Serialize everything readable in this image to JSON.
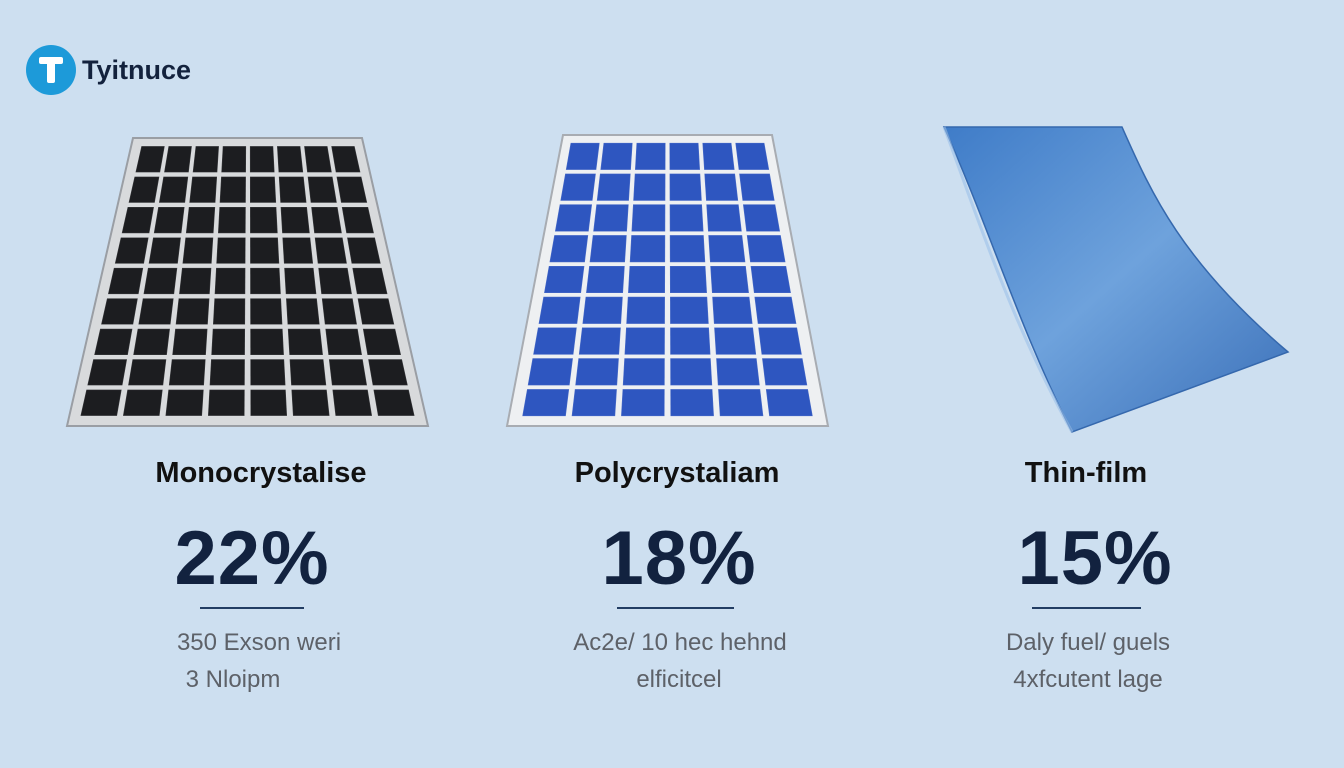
{
  "brand": {
    "name": "Tyitnuce",
    "color": "#1d9ad9"
  },
  "panels": [
    {
      "title": "Monocrystalise",
      "percent": "22%",
      "lines": [
        "350 Exson weri",
        "3 Nloipm"
      ],
      "cell_color": "#1c1d20"
    },
    {
      "title": "Polycrystaliam",
      "percent": "18%",
      "lines": [
        "Ac2e/ 10 hec hehnd",
        "elficitcel"
      ],
      "cell_color": "#2e56c0"
    },
    {
      "title": "Thin-film",
      "percent": "15%",
      "lines": [
        "Daly fuel/ guels",
        "4xfcutent lage"
      ],
      "cell_color": "#4f8fd6"
    }
  ]
}
